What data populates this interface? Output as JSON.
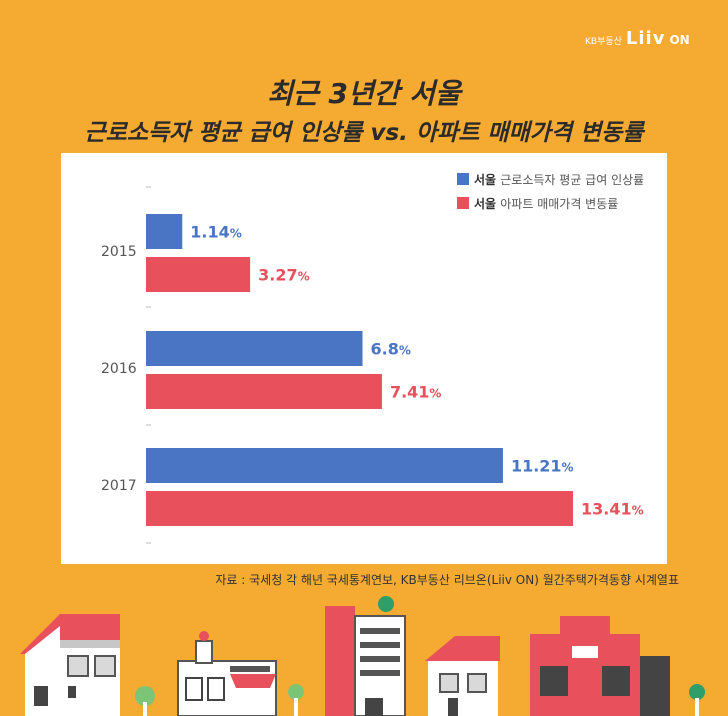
{
  "brand": {
    "kb_text": "KB부동산",
    "liiv_text": "Liiv",
    "on_text": "ON"
  },
  "title": {
    "line1": "최근 3년간 서울",
    "line2": "근로소득자 평균 급여 인상률 vs. 아파트 매매가격 변동률"
  },
  "source": "자료 : 국세청 각 해년 국세통계연보, KB부동산 리브온(Liiv ON) 월간주택가격동향 시계열표",
  "colors": {
    "background": "#f5aa32",
    "panel": "#ffffff",
    "salary": "#4a74c4",
    "apartment": "#e8505b"
  },
  "chart_data": {
    "type": "bar",
    "orientation": "horizontal",
    "categories": [
      "2015",
      "2016",
      "2017"
    ],
    "series": [
      {
        "name": "서울 근로소득자 평균 급여 인상률",
        "legend_prefix": "서울",
        "legend_rest": "근로소득자 평균 급여 인상률",
        "values": [
          1.14,
          6.8,
          11.21
        ],
        "color": "#4a74c4"
      },
      {
        "name": "서울 아파트 매매가격 변동률",
        "legend_prefix": "서울",
        "legend_rest": "아파트 매매가격 변동률",
        "values": [
          3.27,
          7.41,
          13.41
        ],
        "color": "#e8505b"
      }
    ],
    "value_suffix": "%",
    "xlim": [
      0,
      13.41
    ],
    "legend_position": "top-right",
    "grid": false
  },
  "scene_icons": [
    "house-icon",
    "shop-icon",
    "tree-icon",
    "office-tower-icon",
    "fire-station-icon"
  ]
}
